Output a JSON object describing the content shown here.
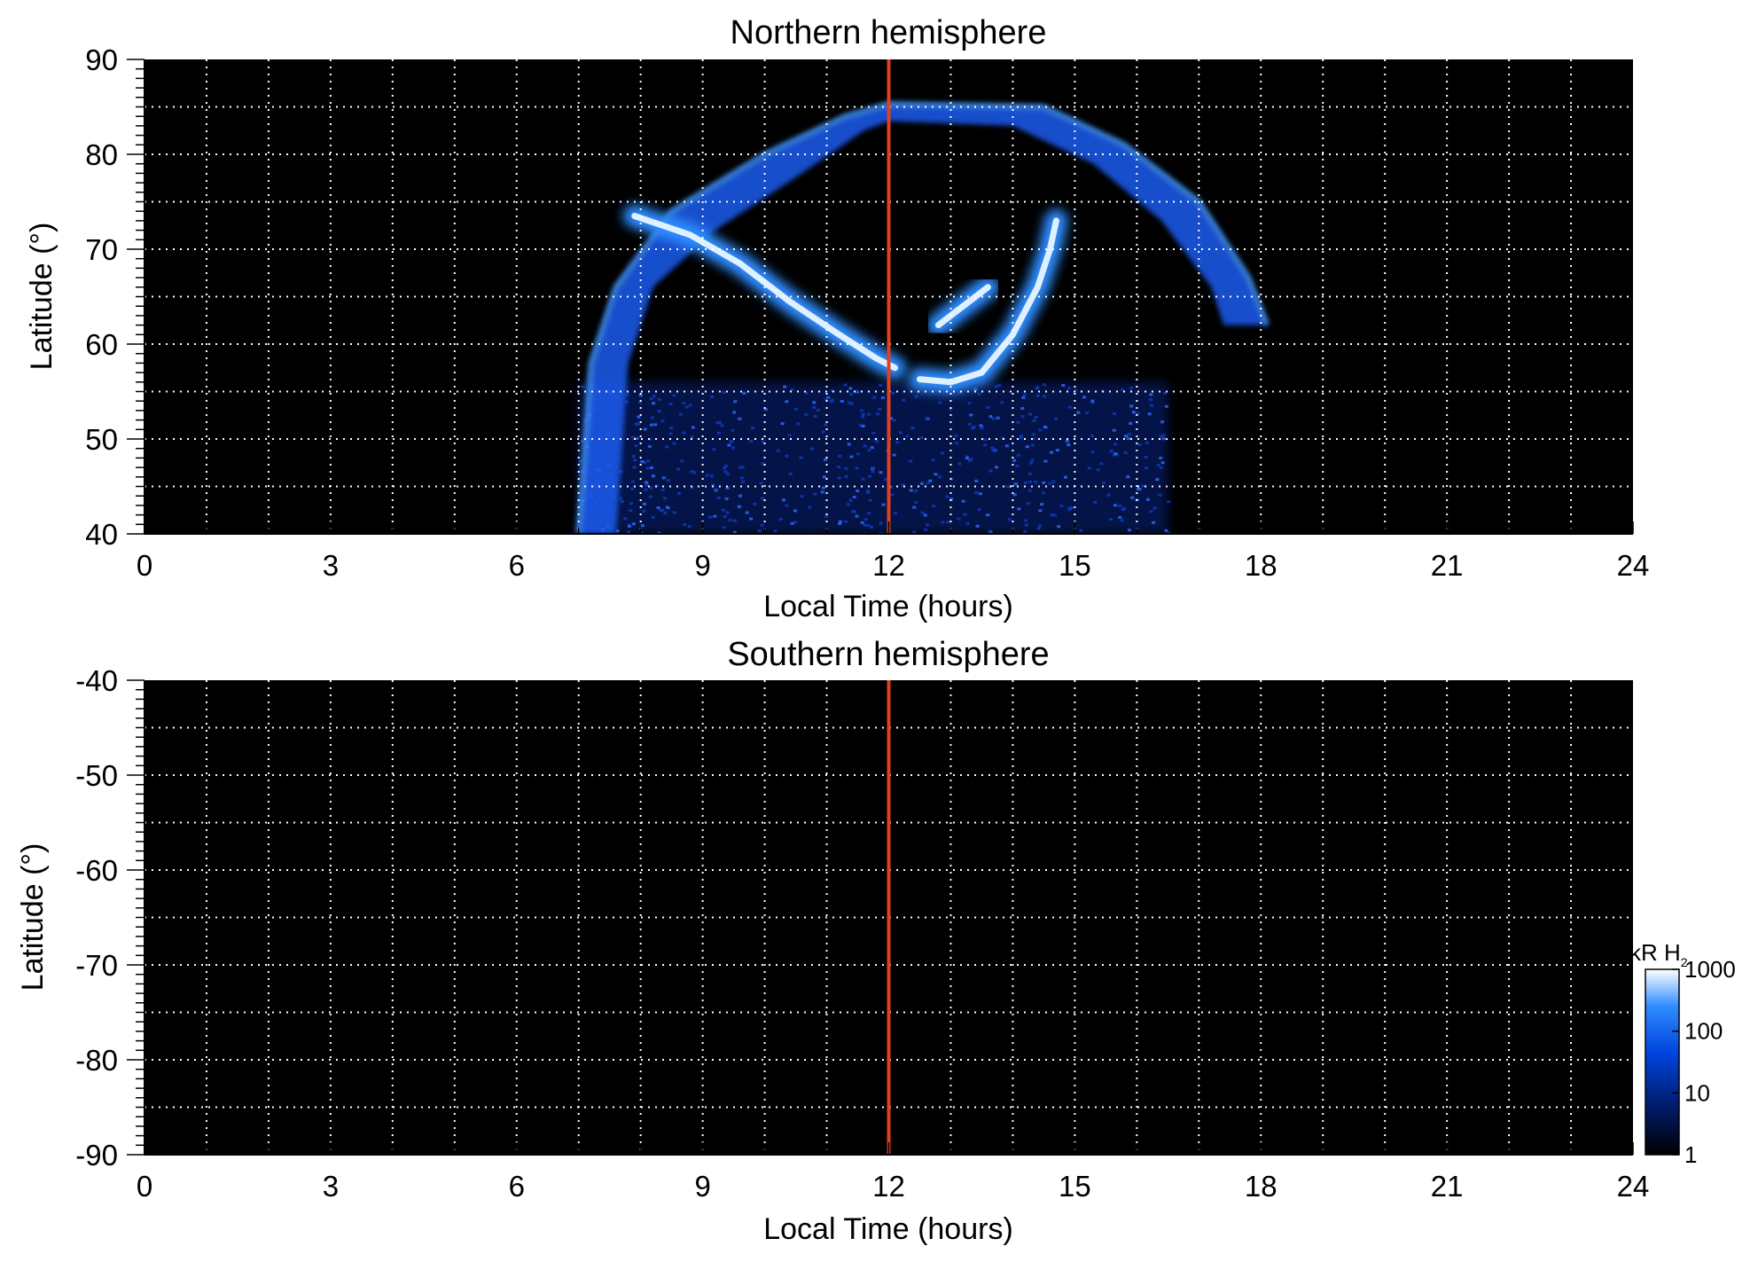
{
  "chart_data": [
    {
      "type": "heatmap",
      "title": "Northern hemisphere",
      "xlabel": "Local Time (hours)",
      "ylabel": "Latitude (°)",
      "xlim": [
        0,
        24
      ],
      "ylim": [
        40,
        90
      ],
      "x_ticks": [
        "0",
        "3",
        "6",
        "9",
        "12",
        "15",
        "18",
        "21",
        "24"
      ],
      "y_ticks": [
        "90",
        "80",
        "70",
        "60",
        "50",
        "40"
      ],
      "grid": true,
      "noon_line": 12,
      "features": {
        "oval_band_outer": [
          [
            7.0,
            40
          ],
          [
            7.2,
            58
          ],
          [
            7.6,
            66
          ],
          [
            8.5,
            74
          ],
          [
            10.0,
            80
          ],
          [
            11.3,
            84
          ],
          [
            12.0,
            85.3
          ],
          [
            14.5,
            85.0
          ],
          [
            15.8,
            81
          ],
          [
            17.0,
            75
          ],
          [
            17.8,
            67
          ],
          [
            18.1,
            62
          ]
        ],
        "oval_band_inner": [
          [
            7.6,
            40
          ],
          [
            7.8,
            58
          ],
          [
            8.2,
            66
          ],
          [
            9.2,
            72
          ],
          [
            10.6,
            78
          ],
          [
            11.6,
            82.5
          ],
          [
            12.0,
            83.5
          ],
          [
            14.0,
            83.0
          ],
          [
            15.3,
            79
          ],
          [
            16.4,
            73
          ],
          [
            17.2,
            66
          ],
          [
            17.4,
            62
          ]
        ],
        "arc_dawn": [
          [
            7.9,
            73.5
          ],
          [
            8.8,
            71.5
          ],
          [
            9.6,
            68.5
          ],
          [
            10.4,
            64.5
          ],
          [
            11.2,
            61
          ],
          [
            11.8,
            58.5
          ],
          [
            12.1,
            57.5
          ]
        ],
        "arc_dusk": [
          [
            12.5,
            56.3
          ],
          [
            13.0,
            56
          ],
          [
            13.5,
            57
          ],
          [
            14.0,
            61
          ],
          [
            14.4,
            66
          ],
          [
            14.6,
            70
          ],
          [
            14.7,
            73
          ]
        ],
        "arc_spot": [
          [
            12.8,
            62
          ],
          [
            13.2,
            64
          ],
          [
            13.6,
            66
          ]
        ],
        "diffuse_region": {
          "lt": [
            7.0,
            16.5
          ],
          "lat": [
            40,
            56
          ]
        }
      }
    },
    {
      "type": "heatmap",
      "title": "Southern hemisphere",
      "xlabel": "Local Time (hours)",
      "ylabel": "Latitude (°)",
      "xlim": [
        0,
        24
      ],
      "ylim": [
        -90,
        -40
      ],
      "x_ticks": [
        "0",
        "3",
        "6",
        "9",
        "12",
        "15",
        "18",
        "21",
        "24"
      ],
      "y_ticks": [
        "-40",
        "-50",
        "-60",
        "-70",
        "-80",
        "-90"
      ],
      "grid": true,
      "noon_line": 12
    }
  ],
  "colorbar": {
    "label": "kR H",
    "subscript": "2",
    "scale": "log",
    "range": [
      1,
      1000
    ],
    "ticks": [
      "1000",
      "100",
      "10",
      "1"
    ],
    "colors": [
      "#000000",
      "#001a66",
      "#0044dd",
      "#2f8cff",
      "#ffffff"
    ]
  },
  "colors": {
    "background": "#000000",
    "grid": "#ffffff",
    "noon_line": "#e0401e"
  }
}
